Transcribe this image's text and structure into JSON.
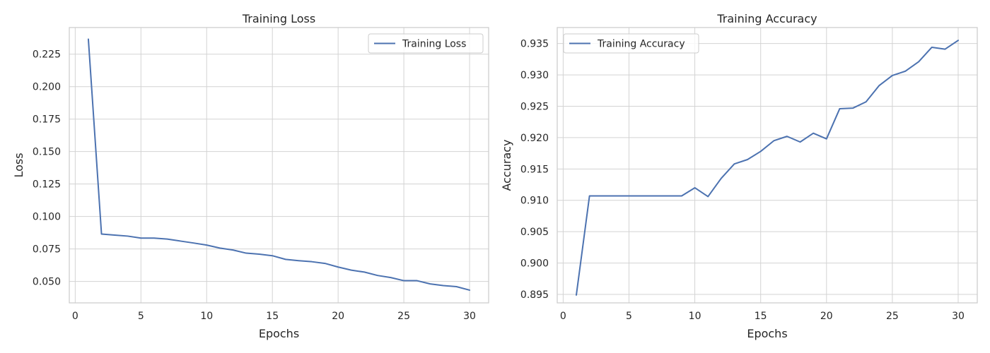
{
  "chart_data": [
    {
      "type": "line",
      "title": "Training Loss",
      "xlabel": "Epochs",
      "ylabel": "Loss",
      "xlim": [
        -0.45,
        31.45
      ],
      "ylim": [
        0.0335,
        0.2455
      ],
      "xticks": [
        0,
        5,
        10,
        15,
        20,
        25,
        30
      ],
      "xtick_labels": [
        "0",
        "5",
        "10",
        "15",
        "20",
        "25",
        "30"
      ],
      "yticks": [
        0.05,
        0.075,
        0.1,
        0.125,
        0.15,
        0.175,
        0.2,
        0.225
      ],
      "ytick_labels": [
        "0.050",
        "0.075",
        "0.100",
        "0.125",
        "0.150",
        "0.175",
        "0.200",
        "0.225"
      ],
      "grid": true,
      "legend_position": "upper right",
      "color": "#4c72b0",
      "series": [
        {
          "name": "Training Loss",
          "x": [
            1,
            2,
            3,
            4,
            5,
            6,
            7,
            8,
            9,
            10,
            11,
            12,
            13,
            14,
            15,
            16,
            17,
            18,
            19,
            20,
            21,
            22,
            23,
            24,
            25,
            26,
            27,
            28,
            29,
            30
          ],
          "values": [
            0.2365,
            0.0865,
            0.0857,
            0.0849,
            0.0834,
            0.0834,
            0.0826,
            0.0811,
            0.0796,
            0.078,
            0.0757,
            0.0742,
            0.0718,
            0.071,
            0.0698,
            0.067,
            0.066,
            0.0652,
            0.0639,
            0.0611,
            0.0587,
            0.0572,
            0.0546,
            0.053,
            0.0506,
            0.0506,
            0.0481,
            0.0468,
            0.046,
            0.0433
          ]
        }
      ]
    },
    {
      "type": "line",
      "title": "Training Accuracy",
      "xlabel": "Epochs",
      "ylabel": "Accuracy",
      "xlim": [
        -0.45,
        31.45
      ],
      "ylim": [
        0.89365,
        0.93755
      ],
      "xticks": [
        0,
        5,
        10,
        15,
        20,
        25,
        30
      ],
      "xtick_labels": [
        "0",
        "5",
        "10",
        "15",
        "20",
        "25",
        "30"
      ],
      "yticks": [
        0.895,
        0.9,
        0.905,
        0.91,
        0.915,
        0.92,
        0.925,
        0.93,
        0.935
      ],
      "ytick_labels": [
        "0.895",
        "0.900",
        "0.905",
        "0.910",
        "0.915",
        "0.920",
        "0.925",
        "0.930",
        "0.935"
      ],
      "grid": true,
      "legend_position": "upper left",
      "color": "#4c72b0",
      "series": [
        {
          "name": "Training Accuracy",
          "x": [
            1,
            2,
            3,
            4,
            5,
            6,
            7,
            8,
            9,
            10,
            11,
            12,
            13,
            14,
            15,
            16,
            17,
            18,
            19,
            20,
            21,
            22,
            23,
            24,
            25,
            26,
            27,
            28,
            29,
            30
          ],
          "values": [
            0.8949,
            0.9107,
            0.9107,
            0.9107,
            0.9107,
            0.9107,
            0.9107,
            0.9107,
            0.9107,
            0.912,
            0.9106,
            0.9135,
            0.9158,
            0.9165,
            0.9178,
            0.9195,
            0.9202,
            0.9193,
            0.9207,
            0.9198,
            0.9246,
            0.9247,
            0.9257,
            0.9283,
            0.9299,
            0.9306,
            0.9321,
            0.9344,
            0.9341,
            0.9355
          ]
        }
      ]
    }
  ]
}
